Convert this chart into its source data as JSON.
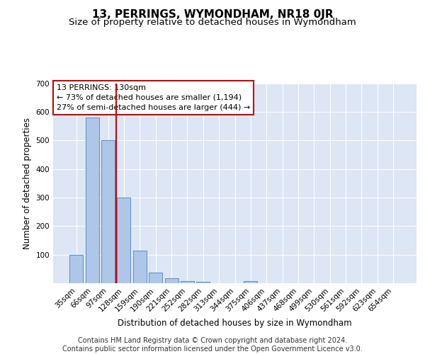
{
  "title": "13, PERRINGS, WYMONDHAM, NR18 0JR",
  "subtitle": "Size of property relative to detached houses in Wymondham",
  "xlabel": "Distribution of detached houses by size in Wymondham",
  "ylabel": "Number of detached properties",
  "categories": [
    "35sqm",
    "66sqm",
    "97sqm",
    "128sqm",
    "159sqm",
    "190sqm",
    "221sqm",
    "252sqm",
    "282sqm",
    "313sqm",
    "344sqm",
    "375sqm",
    "406sqm",
    "437sqm",
    "468sqm",
    "499sqm",
    "530sqm",
    "561sqm",
    "592sqm",
    "623sqm",
    "654sqm"
  ],
  "values": [
    100,
    580,
    500,
    300,
    115,
    38,
    17,
    8,
    5,
    0,
    0,
    8,
    0,
    0,
    0,
    0,
    0,
    0,
    0,
    0,
    0
  ],
  "bar_color": "#aec6e8",
  "bar_edge_color": "#5b8dc8",
  "highlight_bar_index": 3,
  "highlight_color": "#cc0000",
  "ylim": [
    0,
    700
  ],
  "yticks": [
    0,
    100,
    200,
    300,
    400,
    500,
    600,
    700
  ],
  "annotation_text": "13 PERRINGS: 130sqm\n← 73% of detached houses are smaller (1,194)\n27% of semi-detached houses are larger (444) →",
  "annotation_box_facecolor": "#ffffff",
  "annotation_box_edgecolor": "#cc0000",
  "footer": "Contains HM Land Registry data © Crown copyright and database right 2024.\nContains public sector information licensed under the Open Government Licence v3.0.",
  "plot_bg_color": "#dce6f5",
  "grid_color": "#ffffff",
  "title_fontsize": 11,
  "subtitle_fontsize": 9.5,
  "axis_label_fontsize": 8.5,
  "tick_fontsize": 7.5,
  "footer_fontsize": 7.0,
  "annotation_fontsize": 8.0
}
